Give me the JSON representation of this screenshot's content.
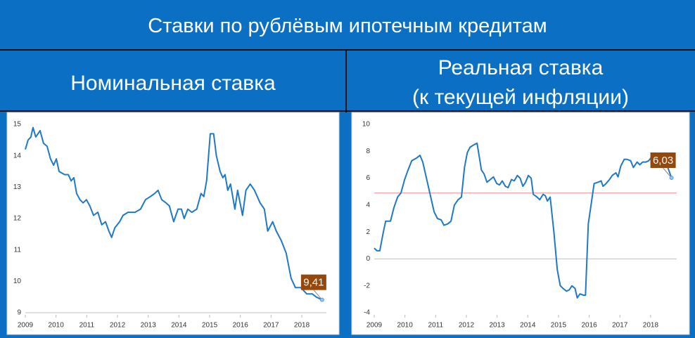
{
  "header": {
    "title": "Ставки по рублёвым ипотечным кредитам"
  },
  "panels": [
    {
      "heading": [
        "Номинальная ставка"
      ]
    },
    {
      "heading": [
        "Реальная ставка",
        "(к текущей инфляции)"
      ]
    }
  ],
  "chart_data": [
    {
      "type": "line",
      "xlim": [
        2009,
        2018.8
      ],
      "xticks": [
        2009,
        2010,
        2011,
        2012,
        2013,
        2014,
        2015,
        2016,
        2017,
        2018
      ],
      "ylim": [
        9,
        15
      ],
      "yticks": [
        9,
        10,
        11,
        12,
        13,
        14,
        15
      ],
      "grid": false,
      "series": [
        {
          "color": "#1f78c8",
          "end_label": "9,41",
          "end_label_color": "#96470c",
          "x": [
            2009.0,
            2009.09,
            2009.18,
            2009.25,
            2009.34,
            2009.48,
            2009.59,
            2009.71,
            2009.82,
            2009.92,
            2010.01,
            2010.1,
            2010.28,
            2010.4,
            2010.49,
            2010.58,
            2010.67,
            2010.78,
            2010.88,
            2010.99,
            2011.1,
            2011.22,
            2011.36,
            2011.49,
            2011.61,
            2011.72,
            2011.81,
            2011.91,
            2012.07,
            2012.18,
            2012.34,
            2012.57,
            2012.75,
            2012.91,
            2013.07,
            2013.21,
            2013.32,
            2013.44,
            2013.58,
            2013.69,
            2013.83,
            2013.97,
            2014.08,
            2014.17,
            2014.29,
            2014.42,
            2014.58,
            2014.72,
            2014.81,
            2014.9,
            2015.02,
            2015.13,
            2015.22,
            2015.34,
            2015.43,
            2015.5,
            2015.59,
            2015.68,
            2015.82,
            2015.91,
            2016.07,
            2016.18,
            2016.32,
            2016.46,
            2016.64,
            2016.78,
            2016.89,
            2017.05,
            2017.17,
            2017.33,
            2017.49,
            2017.65,
            2017.79,
            2017.97,
            2018.16,
            2018.34,
            2018.47,
            2018.66
          ],
          "values": [
            14.2,
            14.5,
            14.6,
            14.9,
            14.6,
            14.8,
            14.4,
            14.3,
            13.9,
            13.7,
            13.9,
            13.5,
            13.4,
            13.4,
            13.2,
            13.3,
            12.8,
            12.6,
            12.5,
            12.6,
            12.4,
            12.1,
            12.2,
            11.8,
            11.9,
            11.6,
            11.4,
            11.7,
            11.9,
            12.1,
            12.2,
            12.2,
            12.3,
            12.6,
            12.7,
            12.8,
            12.9,
            12.6,
            12.5,
            12.4,
            11.9,
            12.3,
            12.3,
            12.0,
            12.3,
            12.2,
            12.3,
            12.8,
            12.7,
            13.2,
            14.7,
            14.7,
            14.0,
            13.5,
            13.3,
            13.4,
            12.9,
            13.1,
            12.3,
            12.9,
            12.1,
            12.9,
            13.1,
            12.9,
            12.5,
            12.3,
            11.6,
            11.9,
            11.6,
            11.3,
            10.9,
            10.1,
            9.8,
            9.8,
            9.6,
            9.6,
            9.5,
            9.41
          ]
        }
      ]
    },
    {
      "type": "line",
      "xlim": [
        2009,
        2018.85
      ],
      "xticks": [
        2009,
        2010,
        2011,
        2012,
        2013,
        2014,
        2015,
        2016,
        2017,
        2018
      ],
      "ylim": [
        -4,
        10
      ],
      "yticks": [
        -4,
        -2,
        0,
        2,
        4,
        6,
        8,
        10
      ],
      "grid": false,
      "reference_line": {
        "value": 4.9,
        "color": "#f2a6a6"
      },
      "series": [
        {
          "color": "#1f78c8",
          "end_label": "6,03",
          "end_label_color": "#96470c",
          "x": [
            2009.0,
            2009.09,
            2009.18,
            2009.28,
            2009.37,
            2009.53,
            2009.64,
            2009.76,
            2009.87,
            2009.99,
            2010.1,
            2010.22,
            2010.38,
            2010.49,
            2010.58,
            2010.72,
            2010.83,
            2010.95,
            2011.06,
            2011.18,
            2011.27,
            2011.39,
            2011.5,
            2011.61,
            2011.73,
            2011.84,
            2011.94,
            2012.03,
            2012.12,
            2012.26,
            2012.35,
            2012.49,
            2012.58,
            2012.67,
            2012.78,
            2012.88,
            2012.99,
            2013.08,
            2013.17,
            2013.27,
            2013.36,
            2013.47,
            2013.56,
            2013.66,
            2013.75,
            2013.84,
            2013.93,
            2014.02,
            2014.11,
            2014.18,
            2014.3,
            2014.39,
            2014.5,
            2014.57,
            2014.64,
            2014.73,
            2014.85,
            2014.96,
            2015.06,
            2015.15,
            2015.26,
            2015.35,
            2015.44,
            2015.54,
            2015.61,
            2015.7,
            2015.81,
            2015.88,
            2015.97,
            2016.06,
            2016.16,
            2016.29,
            2016.39,
            2016.45,
            2016.55,
            2016.66,
            2016.75,
            2016.87,
            2016.94,
            2017.03,
            2017.14,
            2017.23,
            2017.35,
            2017.44,
            2017.56,
            2017.65,
            2017.74,
            2017.85,
            2017.94,
            2018.04,
            2018.13,
            2018.24,
            2018.36,
            2018.47,
            2018.56,
            2018.68
          ],
          "values": [
            0.8,
            0.6,
            0.6,
            1.8,
            2.8,
            2.8,
            3.8,
            4.6,
            4.9,
            5.9,
            6.6,
            7.3,
            7.5,
            7.7,
            7.2,
            5.8,
            4.7,
            3.5,
            3.0,
            2.9,
            2.5,
            2.6,
            2.8,
            4.0,
            4.4,
            4.6,
            6.8,
            7.9,
            8.3,
            8.5,
            8.6,
            6.6,
            6.3,
            5.7,
            5.9,
            6.1,
            5.6,
            5.5,
            5.8,
            5.4,
            5.3,
            5.9,
            5.8,
            6.2,
            6.0,
            5.4,
            5.7,
            6.2,
            6.0,
            4.8,
            4.6,
            4.4,
            4.8,
            4.7,
            4.3,
            4.6,
            2.0,
            -0.8,
            -2.0,
            -2.2,
            -2.4,
            -2.3,
            -2.0,
            -2.2,
            -2.9,
            -2.6,
            -2.7,
            -2.7,
            2.6,
            4.0,
            5.6,
            5.7,
            5.8,
            5.4,
            5.6,
            5.9,
            6.2,
            6.4,
            6.1,
            6.9,
            7.4,
            7.4,
            7.3,
            6.8,
            7.2,
            7.0,
            7.2,
            7.2,
            7.3,
            7.6,
            7.5,
            7.2,
            7.2,
            7.1,
            6.8,
            6.03
          ]
        }
      ]
    }
  ]
}
